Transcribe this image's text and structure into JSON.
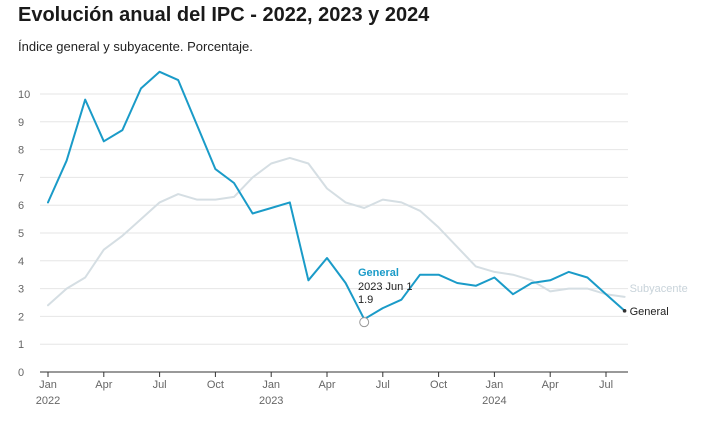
{
  "header": {
    "title": "Evolución anual del IPC - 2022, 2023 y 2024",
    "subtitle": "Índice general y subyacente. Porcentaje."
  },
  "colors": {
    "general": "#1a9bc8",
    "subyacente": "#d5dee3"
  },
  "chart_data": {
    "type": "line",
    "title": "Evolución anual del IPC - 2022, 2023 y 2024",
    "subtitle": "Índice general y subyacente. Porcentaje.",
    "xlabel": "",
    "ylabel": "",
    "ylim": [
      0,
      11
    ],
    "yticks": [
      0,
      1,
      2,
      3,
      4,
      5,
      6,
      7,
      8,
      9,
      10
    ],
    "x": [
      "2022-01",
      "2022-02",
      "2022-03",
      "2022-04",
      "2022-05",
      "2022-06",
      "2022-07",
      "2022-08",
      "2022-09",
      "2022-10",
      "2022-11",
      "2022-12",
      "2023-01",
      "2023-02",
      "2023-03",
      "2023-04",
      "2023-05",
      "2023-06",
      "2023-07",
      "2023-08",
      "2023-09",
      "2023-10",
      "2023-11",
      "2023-12",
      "2024-01",
      "2024-02",
      "2024-03",
      "2024-04",
      "2024-05",
      "2024-06",
      "2024-07",
      "2024-08"
    ],
    "xticks": [
      {
        "index": 0,
        "label": "Jan",
        "year": "2022"
      },
      {
        "index": 3,
        "label": "Apr",
        "year": ""
      },
      {
        "index": 6,
        "label": "Jul",
        "year": ""
      },
      {
        "index": 9,
        "label": "Oct",
        "year": ""
      },
      {
        "index": 12,
        "label": "Jan",
        "year": "2023"
      },
      {
        "index": 15,
        "label": "Apr",
        "year": ""
      },
      {
        "index": 18,
        "label": "Jul",
        "year": ""
      },
      {
        "index": 21,
        "label": "Oct",
        "year": ""
      },
      {
        "index": 24,
        "label": "Jan",
        "year": "2024"
      },
      {
        "index": 27,
        "label": "Apr",
        "year": ""
      },
      {
        "index": 30,
        "label": "Jul",
        "year": ""
      }
    ],
    "series": [
      {
        "name": "Subyacente",
        "label": "Subyacente",
        "values": [
          2.4,
          3.0,
          3.4,
          4.4,
          4.9,
          5.5,
          6.1,
          6.4,
          6.2,
          6.2,
          6.3,
          7.0,
          7.5,
          7.7,
          7.5,
          6.6,
          6.1,
          5.9,
          6.2,
          6.1,
          5.8,
          5.2,
          4.5,
          3.8,
          3.6,
          3.5,
          3.3,
          2.9,
          3.0,
          3.0,
          2.8,
          2.7
        ]
      },
      {
        "name": "General",
        "label": "General",
        "values": [
          6.1,
          7.6,
          9.8,
          8.3,
          8.7,
          10.2,
          10.8,
          10.5,
          8.9,
          7.3,
          6.8,
          5.7,
          5.9,
          6.1,
          3.3,
          4.1,
          3.2,
          1.9,
          2.3,
          2.6,
          3.5,
          3.5,
          3.2,
          3.1,
          3.4,
          2.8,
          3.2,
          3.3,
          3.6,
          3.4,
          2.8,
          2.2
        ]
      }
    ],
    "annotation": {
      "series": "General",
      "index": 17,
      "title": "General",
      "date": "2023 Jun 1",
      "value": "1.9"
    }
  }
}
